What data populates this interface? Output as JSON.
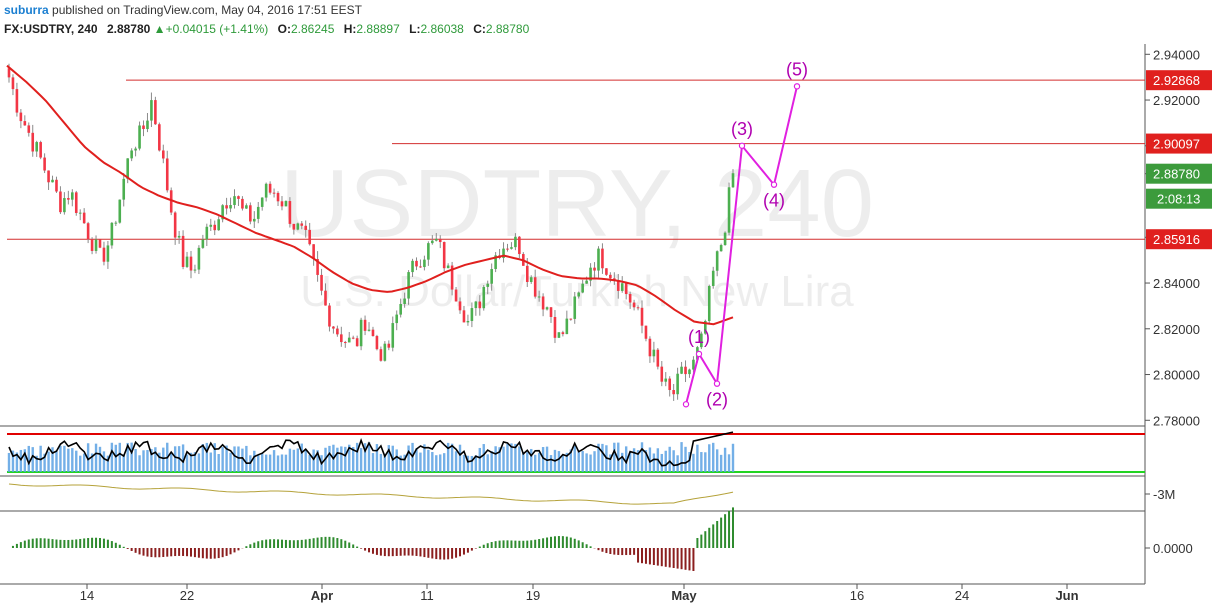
{
  "header": {
    "author": "suburra",
    "published": "published on TradingView.com, May 04, 2016 17:51 EEST",
    "symbol": "FX:USDTRY, 240",
    "last": "2.88780",
    "change": "+0.04015 (+1.41%)",
    "o_label": "O:",
    "o_value": "2.86245",
    "h_label": "H:",
    "h_value": "2.88897",
    "l_label": "L:",
    "l_value": "2.86038",
    "c_label": "C:",
    "c_value": "2.88780"
  },
  "watermark": {
    "title": "USDTRY, 240",
    "subtitle": "U.S. Dollar/Turkish New Lira"
  },
  "colors": {
    "up": "#4caf50",
    "down": "#f23645",
    "ma": "#e0201e",
    "wave": "#e020e0",
    "hline": "#d32f2f",
    "rsi": "#000000",
    "rsi_bars": "#5aa1e3",
    "obv": "#b5a23a"
  },
  "chart_data": {
    "type": "candlestick",
    "price_axis": {
      "ticks": [
        "2.94000",
        "2.92000",
        "2.90000",
        "2.88780",
        "2.86000",
        "2.84000",
        "2.82000",
        "2.80000",
        "2.78000"
      ],
      "range": [
        2.7775,
        2.9445
      ]
    },
    "x_tick_labels": [
      "14",
      "22",
      "Apr",
      "11",
      "19",
      "May",
      "16",
      "24",
      "Jun"
    ],
    "price_tags": [
      {
        "value": 2.92868,
        "label": "2.92868",
        "kind": "resistance"
      },
      {
        "value": 2.90097,
        "label": "2.90097",
        "kind": "resistance"
      },
      {
        "value": 2.8878,
        "label": "2.88780",
        "kind": "last"
      },
      {
        "value": 2.8878,
        "label": "2:08:13",
        "kind": "countdown"
      },
      {
        "value": 2.85916,
        "label": "2.85916",
        "kind": "support"
      }
    ],
    "horizontal_lines": [
      {
        "value": 2.92868,
        "from_label": "16 Mar"
      },
      {
        "value": 2.90097,
        "from_label": "9 Apr"
      },
      {
        "value": 2.85916,
        "from_label": "start"
      }
    ],
    "elliott_wave": {
      "labels": [
        "(1)",
        "(2)",
        "(3)",
        "(4)",
        "(5)"
      ],
      "points": [
        {
          "label": "",
          "value": 2.787
        },
        {
          "label": "(1)",
          "value": 2.809
        },
        {
          "label": "(2)",
          "value": 2.796
        },
        {
          "label": "(3)",
          "value": 2.9
        },
        {
          "label": "(4)",
          "value": 2.883
        },
        {
          "label": "(5)",
          "value": 2.926
        }
      ]
    },
    "closes_anchor": [
      2.93,
      2.915,
      2.905,
      2.895,
      2.885,
      2.875,
      2.88,
      2.87,
      2.86,
      2.85,
      2.86,
      2.88,
      2.9,
      2.905,
      2.92,
      2.895,
      2.87,
      2.85,
      2.845,
      2.86,
      2.865,
      2.875,
      2.88,
      2.87,
      2.868,
      2.88,
      2.88,
      2.875,
      2.865,
      2.86,
      2.845,
      2.83,
      2.82,
      2.815,
      2.813,
      2.825,
      2.812,
      2.808,
      2.825,
      2.84,
      2.85,
      2.855,
      2.858,
      2.845,
      2.835,
      2.823,
      2.83,
      2.845,
      2.855,
      2.858,
      2.857,
      2.843,
      2.835,
      2.828,
      2.815,
      2.825,
      2.835,
      2.848,
      2.852,
      2.845,
      2.84,
      2.832,
      2.822,
      2.81,
      2.797,
      2.79,
      2.8,
      2.803,
      2.815,
      2.843,
      2.86,
      2.888
    ],
    "ma_anchor": [
      2.935,
      2.928,
      2.92,
      2.91,
      2.9,
      2.893,
      2.888,
      2.882,
      2.878,
      2.875,
      2.873,
      2.87,
      2.866,
      2.862,
      2.859,
      2.856,
      2.851,
      2.845,
      2.84,
      2.837,
      2.836,
      2.838,
      2.841,
      2.845,
      2.848,
      2.85,
      2.852,
      2.85,
      2.846,
      2.843,
      2.842,
      2.842,
      2.841,
      2.839,
      2.834,
      2.828,
      2.823,
      2.822,
      2.825
    ],
    "ma_start_index": 0,
    "panels": [
      {
        "name": "rsi",
        "ticks": []
      },
      {
        "name": "obv",
        "ticks": [
          "-3M"
        ]
      },
      {
        "name": "macd_histogram",
        "ticks": [
          "0.0000"
        ]
      }
    ]
  }
}
